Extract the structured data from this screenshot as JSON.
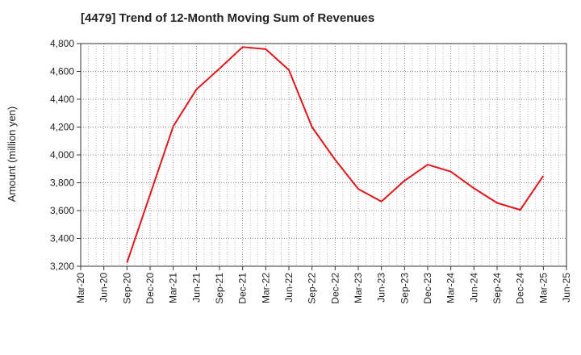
{
  "chart_data": {
    "type": "line",
    "title": "[4479]  Trend of 12-Month Moving Sum of Revenues",
    "ylabel": "Amount (million yen)",
    "xlabel": "",
    "ylim": [
      3200,
      4800
    ],
    "yticks": [
      3200,
      3400,
      3600,
      3800,
      4000,
      4200,
      4400,
      4600,
      4800
    ],
    "ytick_labels": [
      "3,200",
      "3,400",
      "3,600",
      "3,800",
      "4,000",
      "4,200",
      "4,400",
      "4,600",
      "4,800"
    ],
    "categories": [
      "Mar-20",
      "Jun-20",
      "Sep-20",
      "Dec-20",
      "Mar-21",
      "Jun-21",
      "Sep-21",
      "Dec-21",
      "Mar-22",
      "Jun-22",
      "Sep-22",
      "Dec-22",
      "Mar-23",
      "Jun-23",
      "Sep-23",
      "Dec-23",
      "Mar-24",
      "Jun-24",
      "Sep-24",
      "Dec-24",
      "Mar-25",
      "Jun-25"
    ],
    "grid": true,
    "series": [
      {
        "name": "",
        "color": "#e0161b",
        "values": [
          null,
          null,
          3225,
          3715,
          4205,
          4470,
          4620,
          4775,
          4760,
          4610,
          4200,
          3965,
          3755,
          3665,
          3815,
          3930,
          3880,
          3760,
          3655,
          3605,
          3850,
          null
        ]
      }
    ]
  }
}
